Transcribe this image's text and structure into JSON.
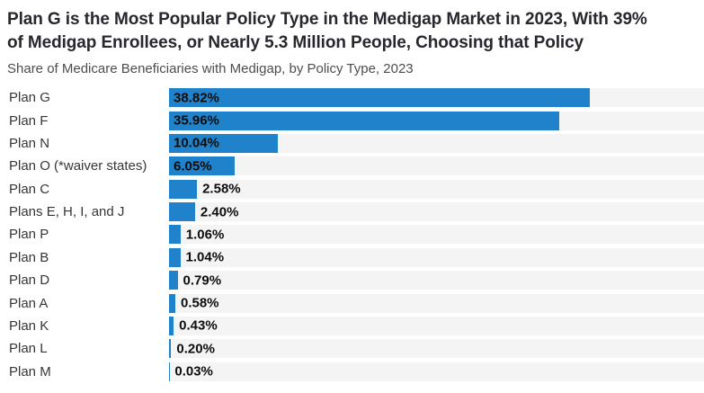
{
  "header": {
    "title": "Plan G is the Most Popular Policy Type in the Medigap Market in 2023, With 39% of Medigap Enrollees, or Nearly 5.3 Million People, Choosing that Policy",
    "title_lines": [
      "Plan G is the Most Popular Policy Type in the Medigap Market in 2023, With 39%",
      "of Medigap Enrollees, or Nearly 5.3 Million People, Choosing that Policy"
    ],
    "subtitle": "Share of Medicare Beneficiaries with Medigap, by Policy Type, 2023"
  },
  "colors": {
    "bar_fill": "#1f82ca",
    "bar_track": "#f4f4f4",
    "title_text": "#27272e",
    "subtitle_text": "#4d4d4d",
    "category_text": "#363636",
    "value_text": "#0d0d0d"
  },
  "chart_data": {
    "type": "bar",
    "orientation": "horizontal",
    "title": "Plan G is the Most Popular Policy Type in the Medigap Market in 2023, With 39% of Medigap Enrollees, or Nearly 5.3 Million People, Choosing that Policy",
    "subtitle": "Share of Medicare Beneficiaries with Medigap, by Policy Type, 2023",
    "xlabel": "",
    "ylabel": "",
    "categories": [
      "Plan G",
      "Plan F",
      "Plan N",
      "Plan O (*waiver states)",
      "Plan C",
      "Plans E, H, I, and J",
      "Plan P",
      "Plan B",
      "Plan D",
      "Plan A",
      "Plan K",
      "Plan L",
      "Plan M"
    ],
    "values": [
      38.82,
      35.96,
      10.04,
      6.05,
      2.58,
      2.4,
      1.06,
      1.04,
      0.79,
      0.58,
      0.43,
      0.2,
      0.03
    ],
    "value_labels": [
      "38.82%",
      "35.96%",
      "10.04%",
      "6.05%",
      "2.58%",
      "2.40%",
      "1.06%",
      "1.04%",
      "0.79%",
      "0.58%",
      "0.43%",
      "0.20%",
      "0.03%"
    ],
    "xlim": [
      0,
      49.35
    ],
    "grid": false,
    "legend": false,
    "inside_label_threshold": 5,
    "unit": "%"
  }
}
